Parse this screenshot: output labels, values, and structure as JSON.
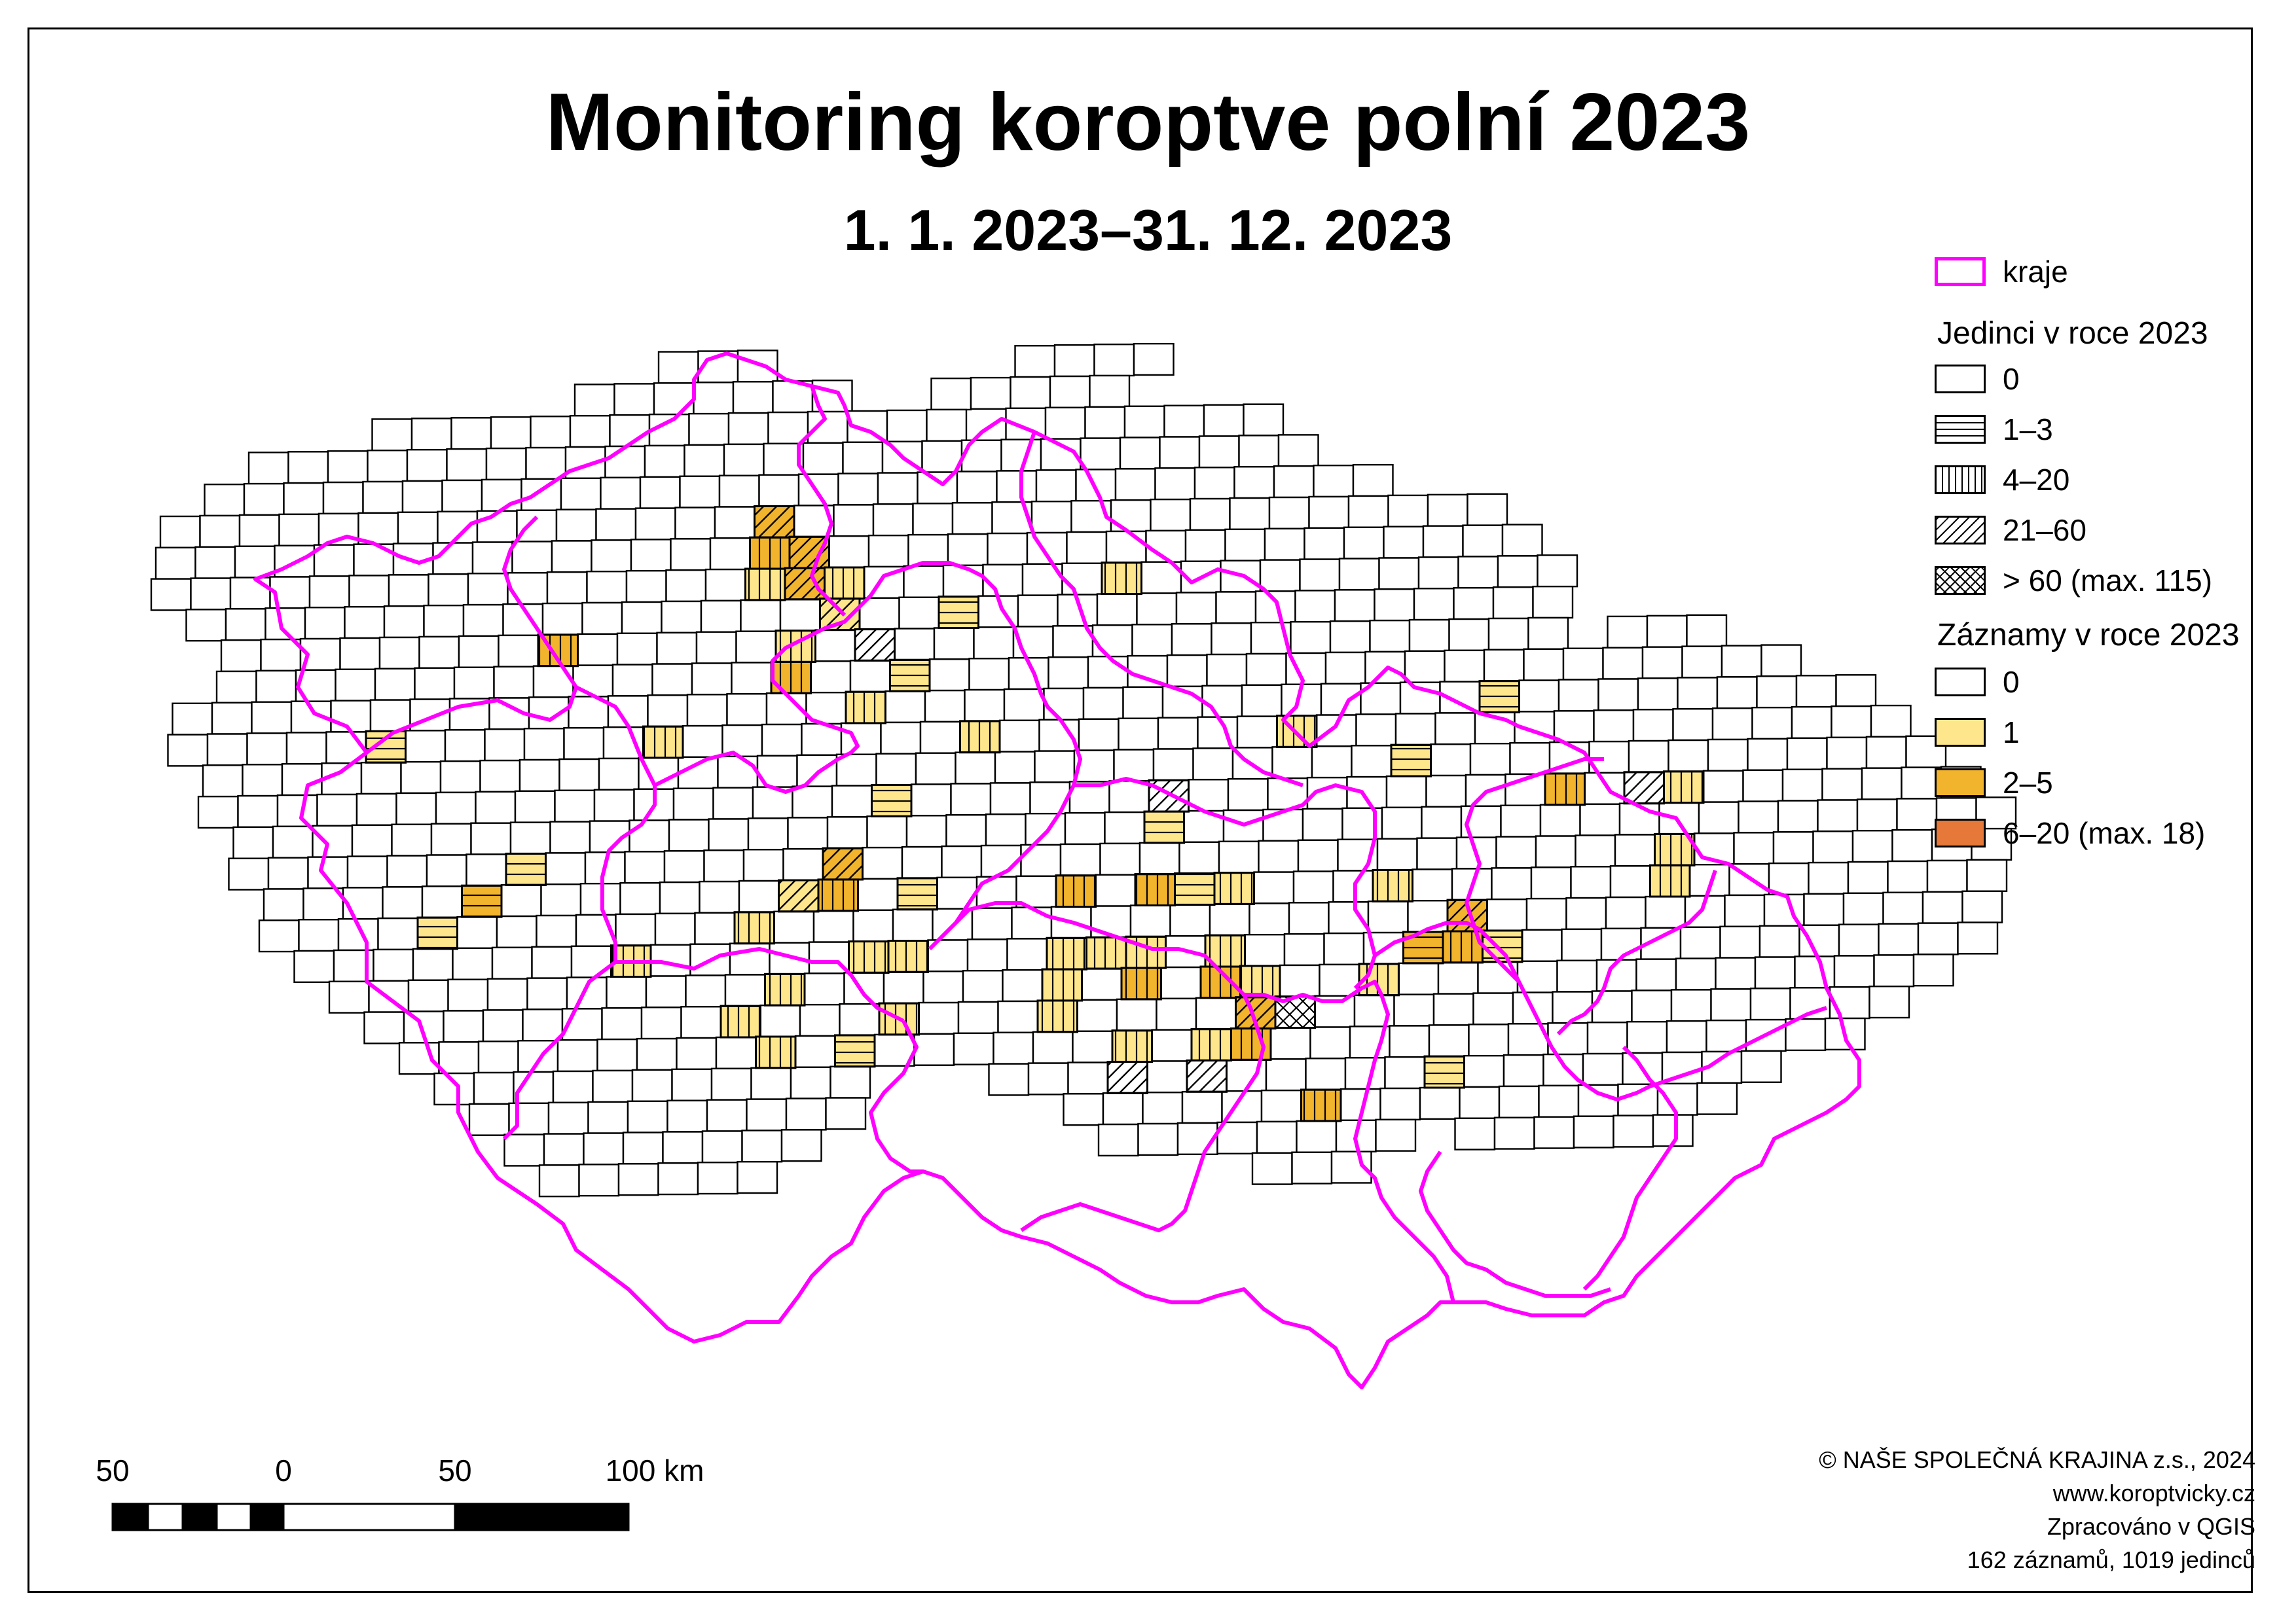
{
  "title": "Monitoring koroptve polní 2023",
  "subtitle": "1. 1. 2023–31. 12. 2023",
  "legend": {
    "boundary_label": "kraje",
    "boundary_color": "#ff00ff",
    "individuals_heading": "Jedinci v roce 2023",
    "individuals": [
      {
        "label": "0",
        "pattern": "none"
      },
      {
        "label": "1–3",
        "pattern": "horizontal"
      },
      {
        "label": "4–20",
        "pattern": "vertical"
      },
      {
        "label": "21–60",
        "pattern": "diagonal"
      },
      {
        "label": "> 60 (max. 115)",
        "pattern": "cross"
      }
    ],
    "records_heading": "Záznamy v roce 2023",
    "records": [
      {
        "label": "0",
        "color": "#ffffff"
      },
      {
        "label": "1",
        "color": "#fde68c"
      },
      {
        "label": "2–5",
        "color": "#f2b42d"
      },
      {
        "label": "6–20 (max. 18)",
        "color": "#e6783a"
      }
    ]
  },
  "scale_bar": {
    "labels": [
      "50",
      "0",
      "50",
      "100 km"
    ]
  },
  "credits": [
    "© NAŠE SPOLEČNÁ KRAJINA z.s., 2024",
    "www.koroptvicky.cz",
    "Zpracováno v QGIS",
    "162 záznamů, 1019 jedinců"
  ],
  "map": {
    "grid_rows": 27,
    "cells_with_records": [
      {
        "row": 5,
        "col": 15,
        "records": "2–5",
        "individuals": "21–60"
      },
      {
        "row": 6,
        "col": 15,
        "records": "2–5",
        "individuals": "4–20"
      },
      {
        "row": 6,
        "col": 16,
        "records": "2–5",
        "individuals": "21–60"
      },
      {
        "row": 7,
        "col": 15,
        "records": "1",
        "individuals": "4–20"
      },
      {
        "row": 7,
        "col": 16,
        "records": "2–5",
        "individuals": "21–60"
      },
      {
        "row": 7,
        "col": 17,
        "records": "1",
        "individuals": "4–20"
      },
      {
        "row": 7,
        "col": 24,
        "records": "1",
        "individuals": "4–20"
      },
      {
        "row": 8,
        "col": 17,
        "records": "1",
        "individuals": "21–60"
      },
      {
        "row": 8,
        "col": 20,
        "records": "1",
        "individuals": "1–3"
      },
      {
        "row": 9,
        "col": 10,
        "records": "2–5",
        "individuals": "4–20"
      },
      {
        "row": 9,
        "col": 16,
        "records": "1",
        "individuals": "4–20"
      },
      {
        "row": 9,
        "col": 18,
        "records": "6–20",
        "individuals": "21–60"
      },
      {
        "row": 10,
        "col": 16,
        "records": "2–5",
        "individuals": "4–20"
      },
      {
        "row": 10,
        "col": 19,
        "records": "1",
        "individuals": "1–3"
      },
      {
        "row": 11,
        "col": 18,
        "records": "1",
        "individuals": "4–20"
      },
      {
        "row": 11,
        "col": 34,
        "records": "1",
        "individuals": "1–3"
      },
      {
        "row": 12,
        "col": 6,
        "records": "1",
        "individuals": "1–3"
      },
      {
        "row": 12,
        "col": 13,
        "records": "1",
        "individuals": "4–20"
      },
      {
        "row": 12,
        "col": 21,
        "records": "1",
        "individuals": "4–20"
      },
      {
        "row": 12,
        "col": 29,
        "records": "1",
        "individuals": "4–20"
      },
      {
        "row": 13,
        "col": 32,
        "records": "1",
        "individuals": "1–3"
      },
      {
        "row": 14,
        "col": 19,
        "records": "1",
        "individuals": "1–3"
      },
      {
        "row": 14,
        "col": 26,
        "records": "6–20",
        "individuals": "21–60"
      },
      {
        "row": 14,
        "col": 36,
        "records": "2–5",
        "individuals": "4–20"
      },
      {
        "row": 14,
        "col": 38,
        "records": "6–20",
        "individuals": "21–60"
      },
      {
        "row": 14,
        "col": 39,
        "records": "1",
        "individuals": "4–20"
      },
      {
        "row": 15,
        "col": 26,
        "records": "1",
        "individuals": "1–3"
      },
      {
        "row": 16,
        "col": 10,
        "records": "1",
        "individuals": "1–3"
      },
      {
        "row": 16,
        "col": 18,
        "records": "2–5",
        "individuals": "21–60"
      },
      {
        "row": 16,
        "col": 39,
        "records": "1",
        "individuals": "4–20"
      },
      {
        "row": 17,
        "col": 9,
        "records": "2–5",
        "individuals": "1–3"
      },
      {
        "row": 17,
        "col": 17,
        "records": "1",
        "individuals": "21–60"
      },
      {
        "row": 17,
        "col": 18,
        "records": "2–5",
        "individuals": "4–20"
      },
      {
        "row": 17,
        "col": 20,
        "records": "1",
        "individuals": "1–3"
      },
      {
        "row": 17,
        "col": 24,
        "records": "2–5",
        "individuals": "4–20"
      },
      {
        "row": 17,
        "col": 26,
        "records": "2–5",
        "individuals": "4–20"
      },
      {
        "row": 17,
        "col": 27,
        "records": "1",
        "individuals": "1–3"
      },
      {
        "row": 17,
        "col": 28,
        "records": "1",
        "individuals": "4–20"
      },
      {
        "row": 17,
        "col": 32,
        "records": "1",
        "individuals": "4–20"
      },
      {
        "row": 17,
        "col": 39,
        "records": "1",
        "individuals": "4–20"
      },
      {
        "row": 18,
        "col": 8,
        "records": "1",
        "individuals": "1–3"
      },
      {
        "row": 18,
        "col": 16,
        "records": "1",
        "individuals": "4–20"
      },
      {
        "row": 18,
        "col": 34,
        "records": "2–5",
        "individuals": "21–60"
      },
      {
        "row": 19,
        "col": 13,
        "records": "1",
        "individuals": "4–20"
      },
      {
        "row": 19,
        "col": 19,
        "records": "1",
        "individuals": "4–20"
      },
      {
        "row": 19,
        "col": 20,
        "records": "1",
        "individuals": "4–20"
      },
      {
        "row": 19,
        "col": 24,
        "records": "1",
        "individuals": "4–20"
      },
      {
        "row": 19,
        "col": 25,
        "records": "1",
        "individuals": "4–20"
      },
      {
        "row": 19,
        "col": 26,
        "records": "1",
        "individuals": "4–20"
      },
      {
        "row": 19,
        "col": 28,
        "records": "1",
        "individuals": "4–20"
      },
      {
        "row": 19,
        "col": 33,
        "records": "2–5",
        "individuals": "1–3"
      },
      {
        "row": 19,
        "col": 34,
        "records": "2–5",
        "individuals": "4–20"
      },
      {
        "row": 19,
        "col": 35,
        "records": "1",
        "individuals": "1–3"
      },
      {
        "row": 20,
        "col": 17,
        "records": "1",
        "individuals": "4–20"
      },
      {
        "row": 20,
        "col": 24,
        "records": "1",
        "individuals": "4–20"
      },
      {
        "row": 20,
        "col": 26,
        "records": "2–5",
        "individuals": "4–20"
      },
      {
        "row": 20,
        "col": 28,
        "records": "2–5",
        "individuals": "4–20"
      },
      {
        "row": 20,
        "col": 29,
        "records": "1",
        "individuals": "4–20"
      },
      {
        "row": 20,
        "col": 32,
        "records": "1",
        "individuals": "4–20"
      },
      {
        "row": 21,
        "col": 24,
        "records": "1",
        "individuals": "4–20"
      },
      {
        "row": 21,
        "col": 29,
        "records": "2–5",
        "individuals": "21–60"
      },
      {
        "row": 21,
        "col": 30,
        "records": "6–20",
        "individuals": "> 60"
      },
      {
        "row": 21,
        "col": 20,
        "records": "1",
        "individuals": "4–20"
      },
      {
        "row": 21,
        "col": 16,
        "records": "1",
        "individuals": "4–20"
      },
      {
        "row": 22,
        "col": 17,
        "records": "1",
        "individuals": "4–20"
      },
      {
        "row": 22,
        "col": 19,
        "records": "1",
        "individuals": "1–3"
      },
      {
        "row": 22,
        "col": 26,
        "records": "1",
        "individuals": "4–20"
      },
      {
        "row": 22,
        "col": 28,
        "records": "1",
        "individuals": "4–20"
      },
      {
        "row": 22,
        "col": 29,
        "records": "2–5",
        "individuals": "4–20"
      },
      {
        "row": 23,
        "col": 26,
        "records": "6–20",
        "individuals": "21–60"
      },
      {
        "row": 23,
        "col": 28,
        "records": "6–20",
        "individuals": "21–60"
      },
      {
        "row": 23,
        "col": 34,
        "records": "1",
        "individuals": "1–3"
      },
      {
        "row": 24,
        "col": 31,
        "records": "2–5",
        "individuals": "4–20"
      }
    ]
  }
}
